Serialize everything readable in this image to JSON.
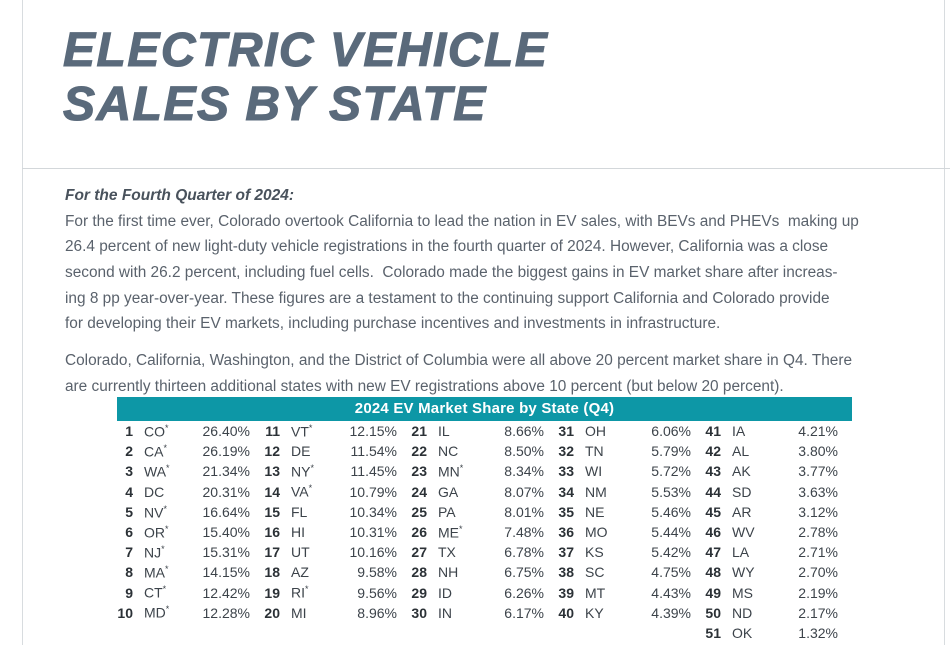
{
  "colors": {
    "accent_teal": "#0D97A6",
    "title_slate": "#5a6a7b",
    "body_text": "#5a626c"
  },
  "header": {
    "title_line1": "ELECTRIC VEHICLE",
    "title_line2": "SALES BY STATE"
  },
  "body": {
    "intro_heading": "For the Fourth Quarter of 2024:",
    "paragraph1_lines": [
      "For the first time ever, Colorado overtook California to lead the nation in EV sales, with BEVs and PHEVs  making up",
      "26.4 percent of new light-duty vehicle registrations in the fourth quarter of 2024. However, California was a close",
      "second with 26.2 percent, including fuel cells.  Colorado made the biggest gains in EV market share after increas-",
      "ing 8 pp year-over-year. These figures are a testament to the continuing support California and Colorado provide",
      "for developing their EV markets, including purchase incentives and investments in infrastructure."
    ],
    "paragraph2_lines": [
      "Colorado, California, Washington, and the District of Columbia were all above 20 percent market share in Q4. There",
      "are currently thirteen additional states with new EV registrations above 10 percent (but below 20 percent)."
    ]
  },
  "table": {
    "title": "2024 EV Market Share by State (Q4)",
    "header_bg": "#0D97A6",
    "entries": [
      {
        "rank": "1",
        "state": "CO",
        "footnote": true,
        "share": "26.40%"
      },
      {
        "rank": "2",
        "state": "CA",
        "footnote": true,
        "share": "26.19%"
      },
      {
        "rank": "3",
        "state": "WA",
        "footnote": true,
        "share": "21.34%"
      },
      {
        "rank": "4",
        "state": "DC",
        "footnote": false,
        "share": "20.31%"
      },
      {
        "rank": "5",
        "state": "NV",
        "footnote": true,
        "share": "16.64%"
      },
      {
        "rank": "6",
        "state": "OR",
        "footnote": true,
        "share": "15.40%"
      },
      {
        "rank": "7",
        "state": "NJ",
        "footnote": true,
        "share": "15.31%"
      },
      {
        "rank": "8",
        "state": "MA",
        "footnote": true,
        "share": "14.15%"
      },
      {
        "rank": "9",
        "state": "CT",
        "footnote": true,
        "share": "12.42%"
      },
      {
        "rank": "10",
        "state": "MD",
        "footnote": true,
        "share": "12.28%"
      },
      {
        "rank": "11",
        "state": "VT",
        "footnote": true,
        "share": "12.15%"
      },
      {
        "rank": "12",
        "state": "DE",
        "footnote": false,
        "share": "11.54%"
      },
      {
        "rank": "13",
        "state": "NY",
        "footnote": true,
        "share": "11.45%"
      },
      {
        "rank": "14",
        "state": "VA",
        "footnote": true,
        "share": "10.79%"
      },
      {
        "rank": "15",
        "state": "FL",
        "footnote": false,
        "share": "10.34%"
      },
      {
        "rank": "16",
        "state": "HI",
        "footnote": false,
        "share": "10.31%"
      },
      {
        "rank": "17",
        "state": "UT",
        "footnote": false,
        "share": "10.16%"
      },
      {
        "rank": "18",
        "state": "AZ",
        "footnote": false,
        "share": "9.58%"
      },
      {
        "rank": "19",
        "state": "RI",
        "footnote": true,
        "share": "9.56%"
      },
      {
        "rank": "20",
        "state": "MI",
        "footnote": false,
        "share": "8.96%"
      },
      {
        "rank": "21",
        "state": "IL",
        "footnote": false,
        "share": "8.66%"
      },
      {
        "rank": "22",
        "state": "NC",
        "footnote": false,
        "share": "8.50%"
      },
      {
        "rank": "23",
        "state": "MN",
        "footnote": true,
        "share": "8.34%"
      },
      {
        "rank": "24",
        "state": "GA",
        "footnote": false,
        "share": "8.07%"
      },
      {
        "rank": "25",
        "state": "PA",
        "footnote": false,
        "share": "8.01%"
      },
      {
        "rank": "26",
        "state": "ME",
        "footnote": true,
        "share": "7.48%"
      },
      {
        "rank": "27",
        "state": "TX",
        "footnote": false,
        "share": "6.78%"
      },
      {
        "rank": "28",
        "state": "NH",
        "footnote": false,
        "share": "6.75%"
      },
      {
        "rank": "29",
        "state": "ID",
        "footnote": false,
        "share": "6.26%"
      },
      {
        "rank": "30",
        "state": "IN",
        "footnote": false,
        "share": "6.17%"
      },
      {
        "rank": "31",
        "state": "OH",
        "footnote": false,
        "share": "6.06%"
      },
      {
        "rank": "32",
        "state": "TN",
        "footnote": false,
        "share": "5.79%"
      },
      {
        "rank": "33",
        "state": "WI",
        "footnote": false,
        "share": "5.72%"
      },
      {
        "rank": "34",
        "state": "NM",
        "footnote": false,
        "share": "5.53%"
      },
      {
        "rank": "35",
        "state": "NE",
        "footnote": false,
        "share": "5.46%"
      },
      {
        "rank": "36",
        "state": "MO",
        "footnote": false,
        "share": "5.44%"
      },
      {
        "rank": "37",
        "state": "KS",
        "footnote": false,
        "share": "5.42%"
      },
      {
        "rank": "38",
        "state": "SC",
        "footnote": false,
        "share": "4.75%"
      },
      {
        "rank": "39",
        "state": "MT",
        "footnote": false,
        "share": "4.43%"
      },
      {
        "rank": "40",
        "state": "KY",
        "footnote": false,
        "share": "4.39%"
      },
      {
        "rank": "41",
        "state": "IA",
        "footnote": false,
        "share": "4.21%"
      },
      {
        "rank": "42",
        "state": "AL",
        "footnote": false,
        "share": "3.80%"
      },
      {
        "rank": "43",
        "state": "AK",
        "footnote": false,
        "share": "3.77%"
      },
      {
        "rank": "44",
        "state": "SD",
        "footnote": false,
        "share": "3.63%"
      },
      {
        "rank": "45",
        "state": "AR",
        "footnote": false,
        "share": "3.12%"
      },
      {
        "rank": "46",
        "state": "WV",
        "footnote": false,
        "share": "2.78%"
      },
      {
        "rank": "47",
        "state": "LA",
        "footnote": false,
        "share": "2.71%"
      },
      {
        "rank": "48",
        "state": "WY",
        "footnote": false,
        "share": "2.70%"
      },
      {
        "rank": "49",
        "state": "MS",
        "footnote": false,
        "share": "2.19%"
      },
      {
        "rank": "50",
        "state": "ND",
        "footnote": false,
        "share": "2.17%"
      },
      {
        "rank": "51",
        "state": "OK",
        "footnote": false,
        "share": "1.32%"
      }
    ]
  }
}
